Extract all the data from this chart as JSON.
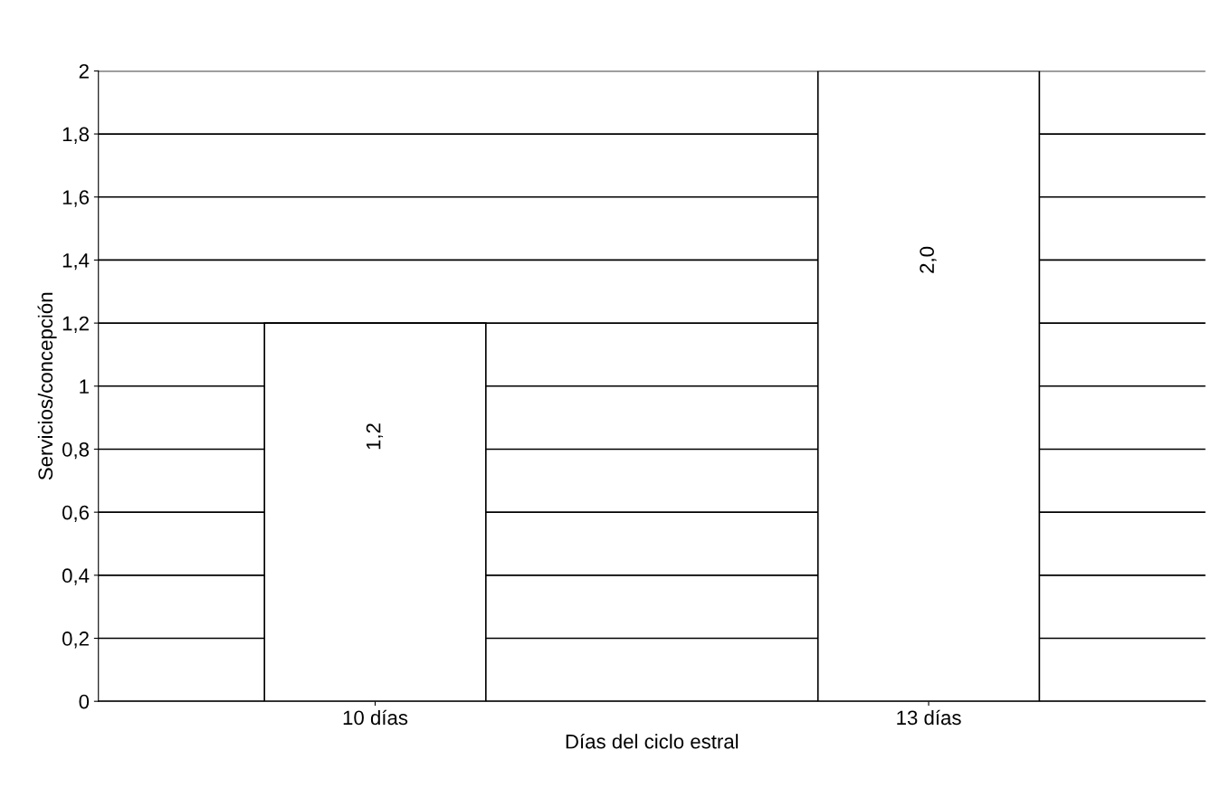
{
  "chart_data": {
    "type": "bar",
    "xlabel": "Días del ciclo estral",
    "ylabel": "Servicios/concepción",
    "categories": [
      "10 días",
      "13 días"
    ],
    "values": [
      1.2,
      2.0
    ],
    "color": "#ffffff",
    "value_labels": [
      "1,2",
      "2,0"
    ],
    "ylim": [
      0,
      2
    ],
    "yticks": [
      0,
      {
        "value": 0.2,
        "label": "0,2"
      },
      {
        "value": 0.4,
        "label": "0,4"
      },
      {
        "value": 0.6,
        "label": "0,6"
      },
      {
        "value": 0.8,
        "label": "0,8"
      },
      1,
      {
        "value": 1.2,
        "label": "1,2"
      },
      {
        "value": 1.4,
        "label": "1,4"
      },
      {
        "value": 1.6,
        "label": "1,6"
      },
      {
        "value": 1.8,
        "label": "1,8"
      },
      2
    ],
    "grid": "y"
  }
}
